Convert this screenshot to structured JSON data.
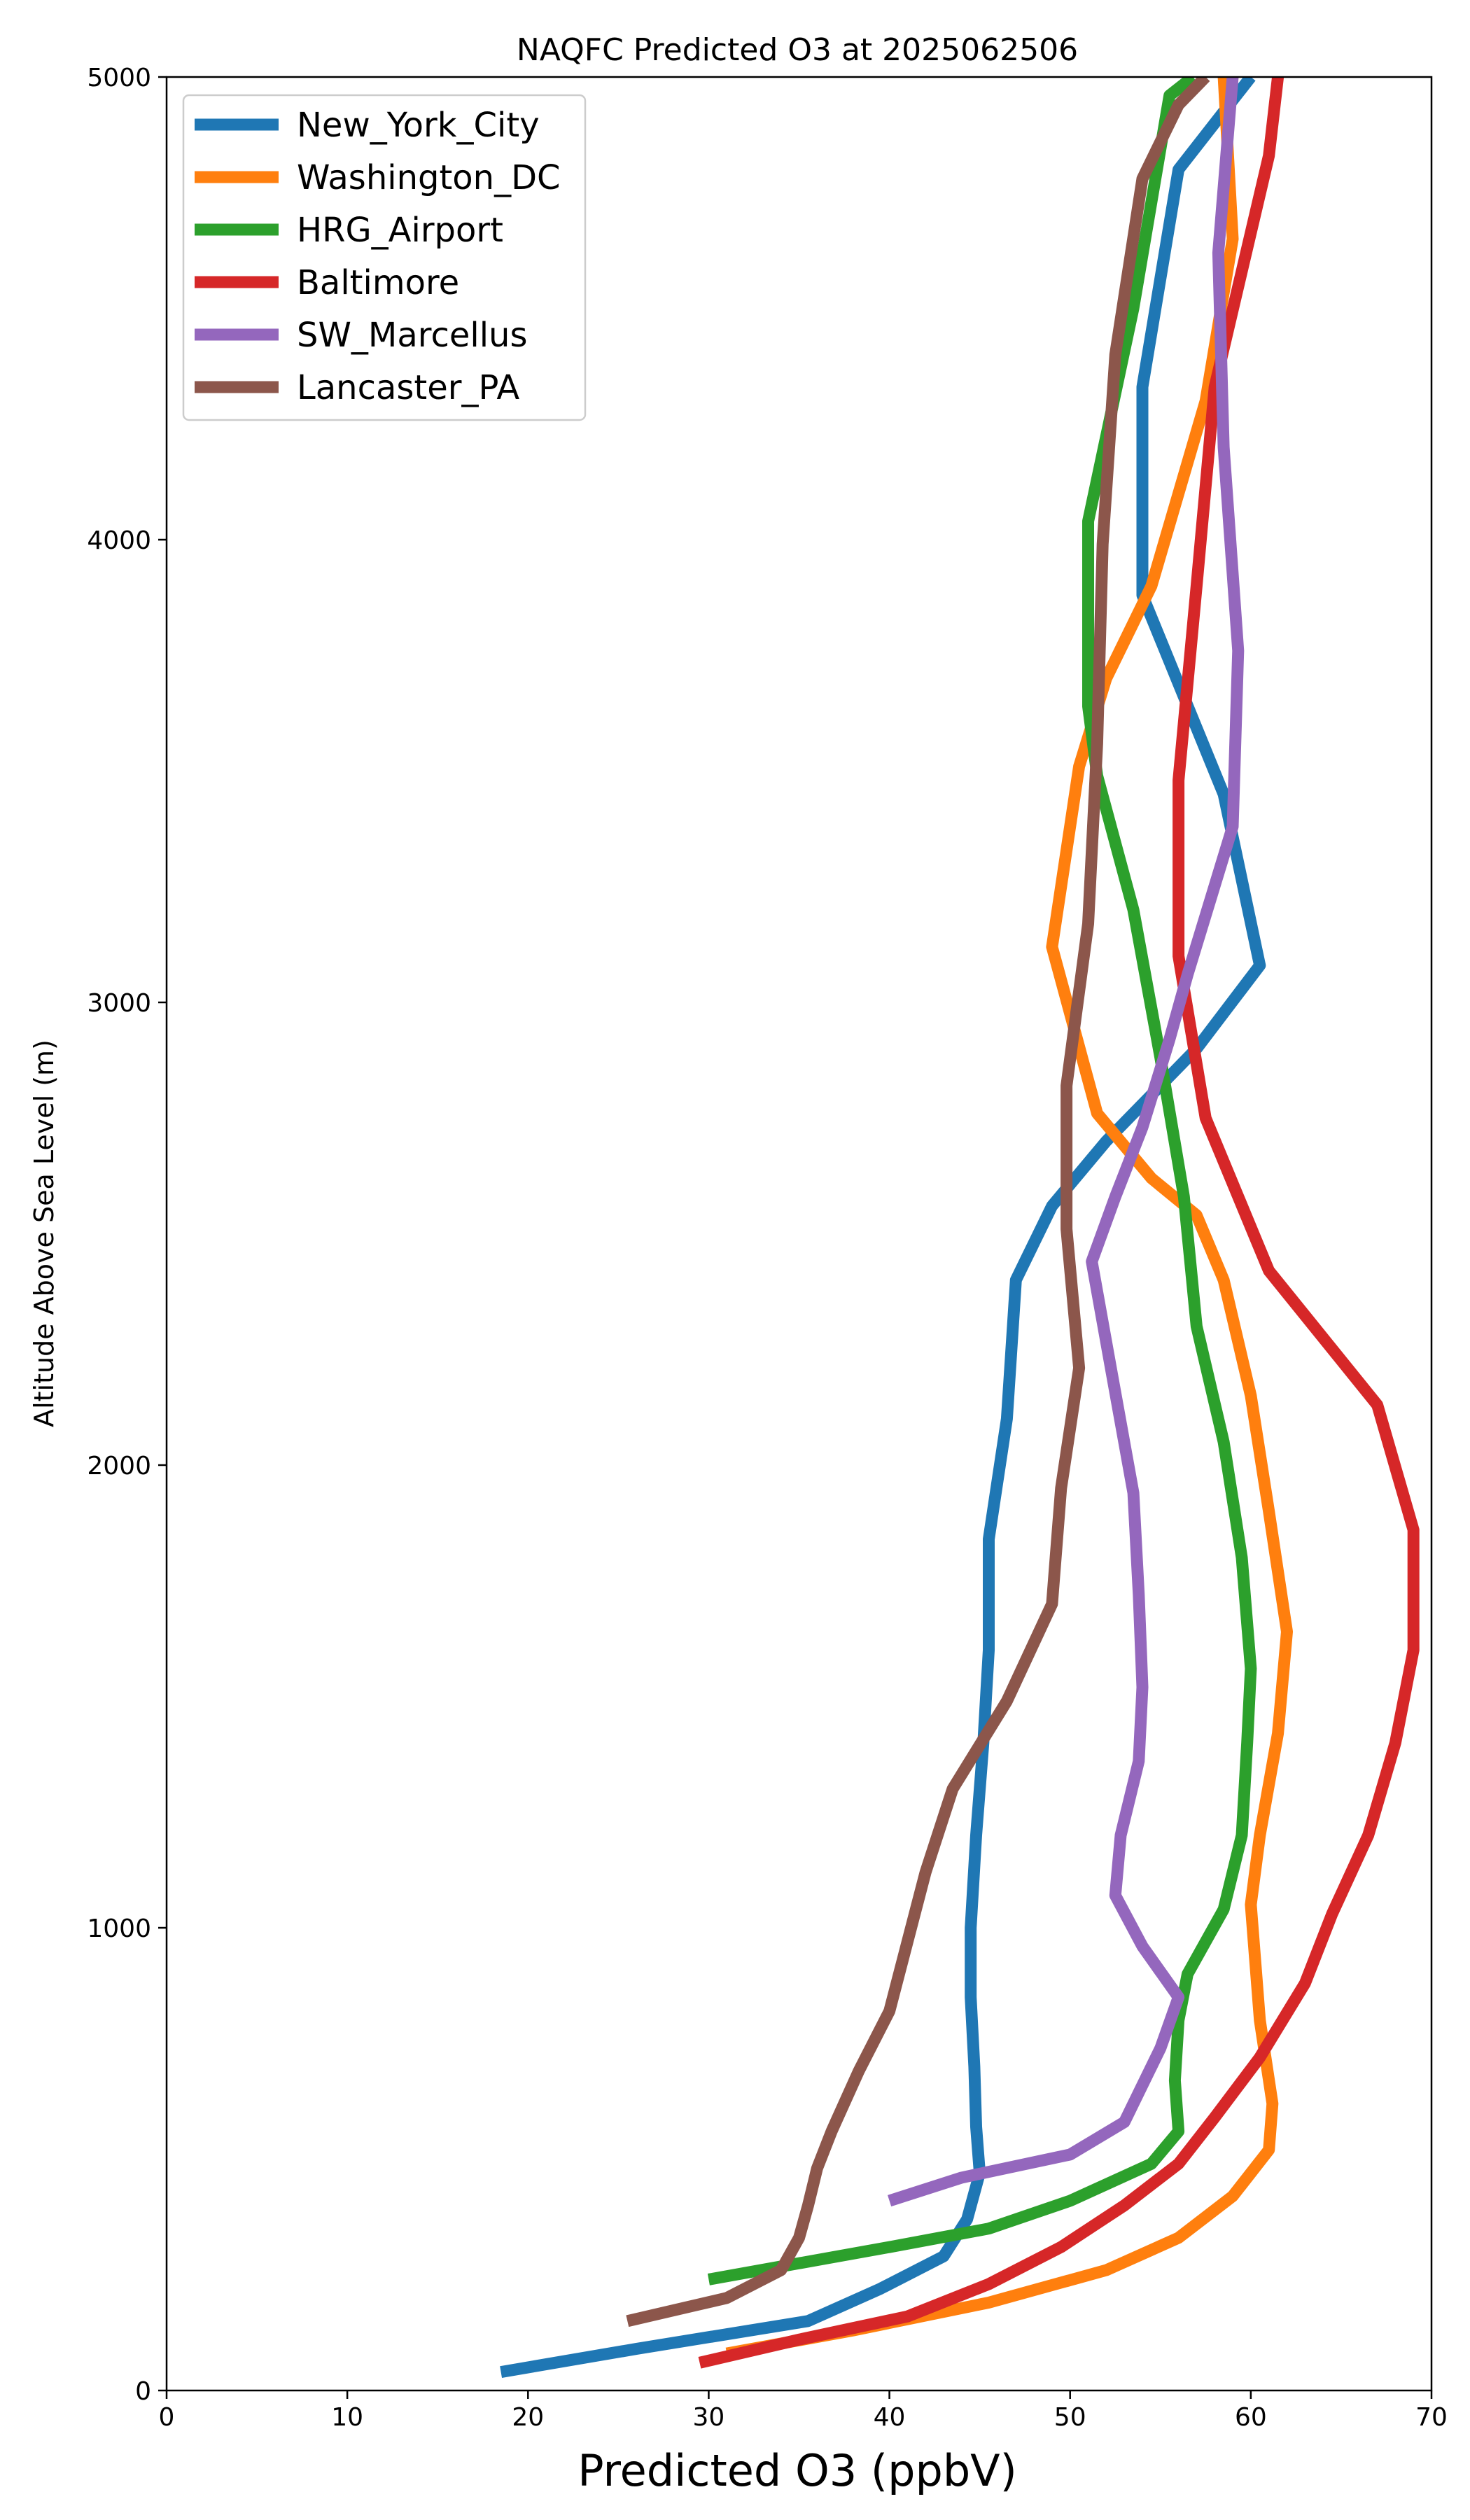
{
  "chart_data": {
    "type": "line",
    "title": "NAQFC Predicted O3 at 2025062506",
    "xlabel": "Predicted O3 (ppbV)",
    "ylabel": "Altitude Above Sea Level (m)",
    "xlim": [
      0,
      70
    ],
    "ylim": [
      0,
      5000
    ],
    "xticks": [
      0,
      10,
      20,
      30,
      40,
      50,
      60,
      70
    ],
    "yticks": [
      0,
      1000,
      2000,
      3000,
      4000,
      5000
    ],
    "grid": false,
    "legend_position": "top-left",
    "series": [
      {
        "name": "New_York_City",
        "color": "#1f77b4",
        "points": [
          [
            18.5,
            40
          ],
          [
            26,
            90
          ],
          [
            35.5,
            150
          ],
          [
            39.5,
            220
          ],
          [
            43,
            290
          ],
          [
            44.3,
            370
          ],
          [
            45,
            470
          ],
          [
            44.8,
            570
          ],
          [
            44.7,
            700
          ],
          [
            44.5,
            850
          ],
          [
            44.5,
            1000
          ],
          [
            44.8,
            1200
          ],
          [
            45.2,
            1400
          ],
          [
            45.5,
            1600
          ],
          [
            45.5,
            1840
          ],
          [
            46.5,
            2100
          ],
          [
            47,
            2400
          ],
          [
            49,
            2560
          ],
          [
            52,
            2700
          ],
          [
            57,
            2900
          ],
          [
            60.5,
            3080
          ],
          [
            58.5,
            3450
          ],
          [
            54,
            3880
          ],
          [
            54,
            4330
          ],
          [
            56,
            4800
          ],
          [
            60,
            5000
          ]
        ]
      },
      {
        "name": "Washington_DC",
        "color": "#ff7f0e",
        "points": [
          [
            31,
            80
          ],
          [
            38,
            130
          ],
          [
            45.5,
            190
          ],
          [
            52,
            260
          ],
          [
            56,
            330
          ],
          [
            59,
            420
          ],
          [
            61,
            520
          ],
          [
            61.2,
            620
          ],
          [
            60.5,
            800
          ],
          [
            60,
            1050
          ],
          [
            60.5,
            1200
          ],
          [
            61.5,
            1420
          ],
          [
            62,
            1640
          ],
          [
            61,
            1900
          ],
          [
            60,
            2150
          ],
          [
            58.5,
            2400
          ],
          [
            57,
            2540
          ],
          [
            54.5,
            2620
          ],
          [
            51.5,
            2760
          ],
          [
            49,
            3120
          ],
          [
            50.5,
            3510
          ],
          [
            52,
            3700
          ],
          [
            54.5,
            3900
          ],
          [
            57.5,
            4300
          ],
          [
            59,
            4650
          ],
          [
            58.5,
            5000
          ]
        ]
      },
      {
        "name": "HRG_Airport",
        "color": "#2ca02c",
        "points": [
          [
            30,
            240
          ],
          [
            40,
            310
          ],
          [
            45.5,
            350
          ],
          [
            50,
            410
          ],
          [
            54.5,
            490
          ],
          [
            56,
            560
          ],
          [
            55.8,
            670
          ],
          [
            56,
            800
          ],
          [
            56.5,
            900
          ],
          [
            58.5,
            1040
          ],
          [
            59.5,
            1200
          ],
          [
            59.8,
            1400
          ],
          [
            60,
            1560
          ],
          [
            59.5,
            1800
          ],
          [
            58.5,
            2050
          ],
          [
            57,
            2300
          ],
          [
            56.3,
            2580
          ],
          [
            55,
            2880
          ],
          [
            53.5,
            3200
          ],
          [
            51.5,
            3490
          ],
          [
            51,
            3640
          ],
          [
            51,
            4040
          ],
          [
            53.5,
            4500
          ],
          [
            55.5,
            4960
          ],
          [
            56.8,
            5000
          ]
        ]
      },
      {
        "name": "Baltimore",
        "color": "#d62728",
        "points": [
          [
            29.5,
            60
          ],
          [
            35,
            110
          ],
          [
            41,
            160
          ],
          [
            45.5,
            230
          ],
          [
            49.5,
            310
          ],
          [
            53,
            400
          ],
          [
            56,
            490
          ],
          [
            58,
            590
          ],
          [
            60.5,
            720
          ],
          [
            63,
            880
          ],
          [
            64.5,
            1030
          ],
          [
            66.5,
            1200
          ],
          [
            68,
            1400
          ],
          [
            69,
            1600
          ],
          [
            69,
            1860
          ],
          [
            67,
            2130
          ],
          [
            61,
            2420
          ],
          [
            57.5,
            2750
          ],
          [
            56,
            3100
          ],
          [
            56,
            3480
          ],
          [
            57,
            3900
          ],
          [
            58,
            4330
          ],
          [
            61,
            4830
          ],
          [
            61.5,
            5000
          ]
        ]
      },
      {
        "name": "SW_Marcellus",
        "color": "#9467bd",
        "points": [
          [
            40,
            410
          ],
          [
            44,
            460
          ],
          [
            50,
            510
          ],
          [
            53,
            580
          ],
          [
            55,
            740
          ],
          [
            56,
            850
          ],
          [
            54,
            960
          ],
          [
            52.5,
            1070
          ],
          [
            52.8,
            1200
          ],
          [
            53.8,
            1360
          ],
          [
            54,
            1520
          ],
          [
            53.8,
            1720
          ],
          [
            53.5,
            1940
          ],
          [
            52.3,
            2200
          ],
          [
            51.2,
            2440
          ],
          [
            52.5,
            2580
          ],
          [
            54,
            2730
          ],
          [
            55.5,
            2920
          ],
          [
            56.5,
            3060
          ],
          [
            59,
            3380
          ],
          [
            59.3,
            3760
          ],
          [
            58.5,
            4200
          ],
          [
            58.2,
            4620
          ],
          [
            59,
            5000
          ]
        ]
      },
      {
        "name": "Lancaster_PA",
        "color": "#8c564b",
        "points": [
          [
            25.5,
            150
          ],
          [
            31,
            200
          ],
          [
            34,
            260
          ],
          [
            35,
            330
          ],
          [
            35.5,
            400
          ],
          [
            36,
            480
          ],
          [
            36.8,
            560
          ],
          [
            38.3,
            690
          ],
          [
            40,
            820
          ],
          [
            41,
            970
          ],
          [
            42,
            1120
          ],
          [
            43.5,
            1300
          ],
          [
            46.5,
            1490
          ],
          [
            49,
            1700
          ],
          [
            49.5,
            1950
          ],
          [
            50.5,
            2210
          ],
          [
            49.8,
            2510
          ],
          [
            49.8,
            2820
          ],
          [
            51,
            3170
          ],
          [
            51.5,
            3560
          ],
          [
            51.8,
            3990
          ],
          [
            52.5,
            4400
          ],
          [
            54,
            4780
          ],
          [
            56,
            4940
          ],
          [
            57.5,
            5000
          ]
        ]
      }
    ]
  }
}
